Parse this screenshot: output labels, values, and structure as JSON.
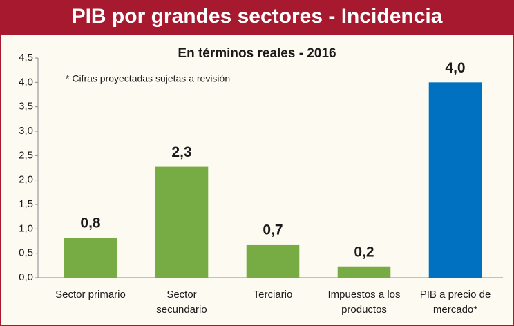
{
  "chart_data": {
    "type": "bar",
    "title": "PIB por grandes sectores - Incidencia",
    "subtitle": "En términos reales - 2016",
    "annotation": "* Cifras proyectadas sujetas a revisión",
    "categories": [
      "Sector primario",
      "Sector secundario",
      "Terciario",
      "Impuestos a los productos",
      "PIB a precio de mercado*"
    ],
    "values": [
      0.82,
      2.27,
      0.68,
      0.23,
      4.0
    ],
    "value_labels": [
      "0,8",
      "2,3",
      "0,7",
      "0,2",
      "4,0"
    ],
    "colors": [
      "#77ab43",
      "#77ab43",
      "#77ab43",
      "#77ab43",
      "#0070c0"
    ],
    "ylim": [
      0,
      4.5
    ],
    "yticks": [
      {
        "value": 0,
        "label": "0,0"
      },
      {
        "value": 0.5,
        "label": "0,5"
      },
      {
        "value": 1,
        "label": "1,0"
      },
      {
        "value": 1.5,
        "label": "1,5"
      },
      {
        "value": 2,
        "label": "2,0"
      },
      {
        "value": 2.5,
        "label": "2,5"
      },
      {
        "value": 3,
        "label": "3,0"
      },
      {
        "value": 3.5,
        "label": "3,5"
      },
      {
        "value": 4,
        "label": "4,0"
      },
      {
        "value": 4.5,
        "label": "4,5"
      }
    ],
    "grid": false
  }
}
